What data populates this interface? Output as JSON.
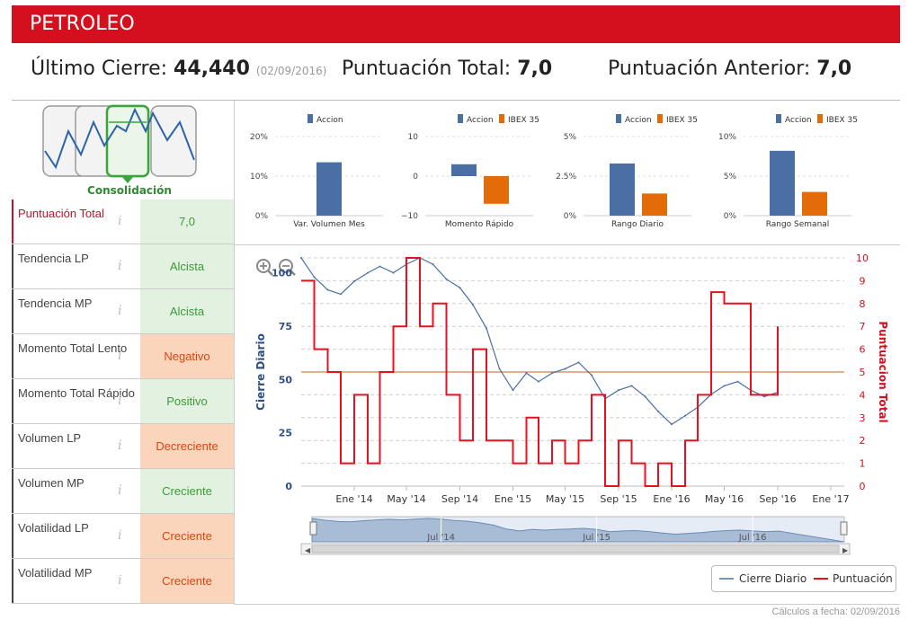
{
  "header": {
    "title": "PETROLEO"
  },
  "summary": {
    "ultimo_label": "Último Cierre:",
    "ultimo_value": "44,440",
    "ultimo_date": "(02/09/2016)",
    "total_label": "Puntuación Total:",
    "total_value": "7,0",
    "anterior_label": "Puntuación Anterior:",
    "anterior_value": "7,0"
  },
  "phase": {
    "label": "Consolidación"
  },
  "indicators": [
    {
      "label": "Puntuación Total",
      "value": "7,0",
      "tone": "green"
    },
    {
      "label": "Tendencia LP",
      "value": "Alcista",
      "tone": "green"
    },
    {
      "label": "Tendencia MP",
      "value": "Alcista",
      "tone": "green"
    },
    {
      "label": "Momento Total Lento",
      "value": "Negativo",
      "tone": "orange"
    },
    {
      "label": "Momento Total Rápido",
      "value": "Positivo",
      "tone": "green"
    },
    {
      "label": "Volumen LP",
      "value": "Decreciente",
      "tone": "orange"
    },
    {
      "label": "Volumen MP",
      "value": "Creciente",
      "tone": "green"
    },
    {
      "label": "Volatilidad LP",
      "value": "Creciente",
      "tone": "orange"
    },
    {
      "label": "Volatilidad MP",
      "value": "Creciente",
      "tone": "orange"
    }
  ],
  "colors": {
    "accion": "#4a6fa5",
    "ibex": "#e36c0a",
    "cierre": "#4a6fa5",
    "puntuacion": "#e8101f",
    "brand": "#d4101f"
  },
  "footer": {
    "text": "Cálculos a fecha: 02/09/2016"
  },
  "chart_data": [
    {
      "type": "bar",
      "legend": [
        "Accion"
      ],
      "series": [
        {
          "name": "Accion",
          "values": [
            13.5
          ]
        }
      ],
      "ylim": [
        0,
        20
      ],
      "yticks": [
        "20%",
        "10%",
        "0%"
      ],
      "xlabel": "Var. Volumen Mes"
    },
    {
      "type": "bar",
      "legend": [
        "Accion",
        "IBEX 35"
      ],
      "series": [
        {
          "name": "Accion",
          "values": [
            3
          ]
        },
        {
          "name": "IBEX 35",
          "values": [
            -7
          ]
        }
      ],
      "ylim": [
        -10,
        10
      ],
      "yticks": [
        "10",
        "0",
        "−10"
      ],
      "xlabel": "Momento Rápido"
    },
    {
      "type": "bar",
      "legend": [
        "Accion",
        "IBEX 35"
      ],
      "series": [
        {
          "name": "Accion",
          "values": [
            3.3
          ]
        },
        {
          "name": "IBEX 35",
          "values": [
            1.4
          ]
        }
      ],
      "ylim": [
        0,
        5
      ],
      "yticks": [
        "5%",
        "2.5%",
        "0%"
      ],
      "xlabel": "Rango Diario"
    },
    {
      "type": "bar",
      "legend": [
        "Accion",
        "IBEX 35"
      ],
      "series": [
        {
          "name": "Accion",
          "values": [
            8.2
          ]
        },
        {
          "name": "IBEX 35",
          "values": [
            3
          ]
        }
      ],
      "ylim": [
        0,
        10
      ],
      "yticks": [
        "10%",
        "5%",
        "0%"
      ],
      "xlabel": "Rango Semanal"
    },
    {
      "type": "line",
      "ylabel": "Cierre Diario",
      "y2label": "Puntuacion Total",
      "ylim": [
        0,
        107
      ],
      "y2lim": [
        0,
        10
      ],
      "yticks": [
        0,
        25,
        50,
        75,
        100
      ],
      "y2ticks": [
        0,
        1,
        2,
        3,
        4,
        5,
        6,
        7,
        8,
        9,
        10
      ],
      "xticks": [
        "Ene '14",
        "May '14",
        "Sep '14",
        "Ene '15",
        "May '15",
        "Sep '15",
        "Ene '16",
        "May '16",
        "Sep '16",
        "Ene '17"
      ],
      "navigator_ticks": [
        "Jul '14",
        "Jul '15",
        "Jul '16"
      ],
      "reference_line": 5,
      "legend": [
        "Cierre Diario",
        "Puntuación"
      ],
      "series": [
        {
          "name": "Cierre Diario",
          "x": [
            "2013-09",
            "2013-10",
            "2013-11",
            "2013-12",
            "2014-01",
            "2014-02",
            "2014-03",
            "2014-04",
            "2014-05",
            "2014-06",
            "2014-07",
            "2014-08",
            "2014-09",
            "2014-10",
            "2014-11",
            "2014-12",
            "2015-01",
            "2015-02",
            "2015-03",
            "2015-04",
            "2015-05",
            "2015-06",
            "2015-07",
            "2015-08",
            "2015-09",
            "2015-10",
            "2015-11",
            "2015-12",
            "2016-01",
            "2016-02",
            "2016-03",
            "2016-04",
            "2016-05",
            "2016-06",
            "2016-07",
            "2016-08",
            "2016-09"
          ],
          "values": [
            107,
            98,
            92,
            90,
            96,
            100,
            103,
            100,
            104,
            107,
            104,
            97,
            93,
            85,
            74,
            55,
            45,
            53,
            49,
            53,
            55,
            58,
            52,
            41,
            45,
            47,
            42,
            35,
            29,
            33,
            37,
            43,
            47,
            49,
            45,
            42,
            44
          ]
        },
        {
          "name": "Puntuación",
          "x": [
            "2013-09",
            "2013-10",
            "2013-11",
            "2013-12",
            "2014-01",
            "2014-02",
            "2014-03",
            "2014-04",
            "2014-05",
            "2014-06",
            "2014-07",
            "2014-08",
            "2014-09",
            "2014-10",
            "2014-11",
            "2014-12",
            "2015-01",
            "2015-02",
            "2015-03",
            "2015-04",
            "2015-05",
            "2015-06",
            "2015-07",
            "2015-08",
            "2015-09",
            "2015-10",
            "2015-11",
            "2015-12",
            "2016-01",
            "2016-02",
            "2016-03",
            "2016-04",
            "2016-05",
            "2016-06",
            "2016-07",
            "2016-08",
            "2016-09"
          ],
          "values": [
            9,
            6,
            5,
            1,
            4,
            1,
            5,
            7,
            10,
            7,
            8,
            4,
            2,
            6,
            2,
            2,
            1,
            3,
            1,
            2,
            1,
            2,
            4,
            0,
            2,
            1,
            0,
            1,
            0,
            2,
            4,
            8.5,
            8,
            8,
            4,
            4,
            7
          ]
        }
      ]
    }
  ]
}
